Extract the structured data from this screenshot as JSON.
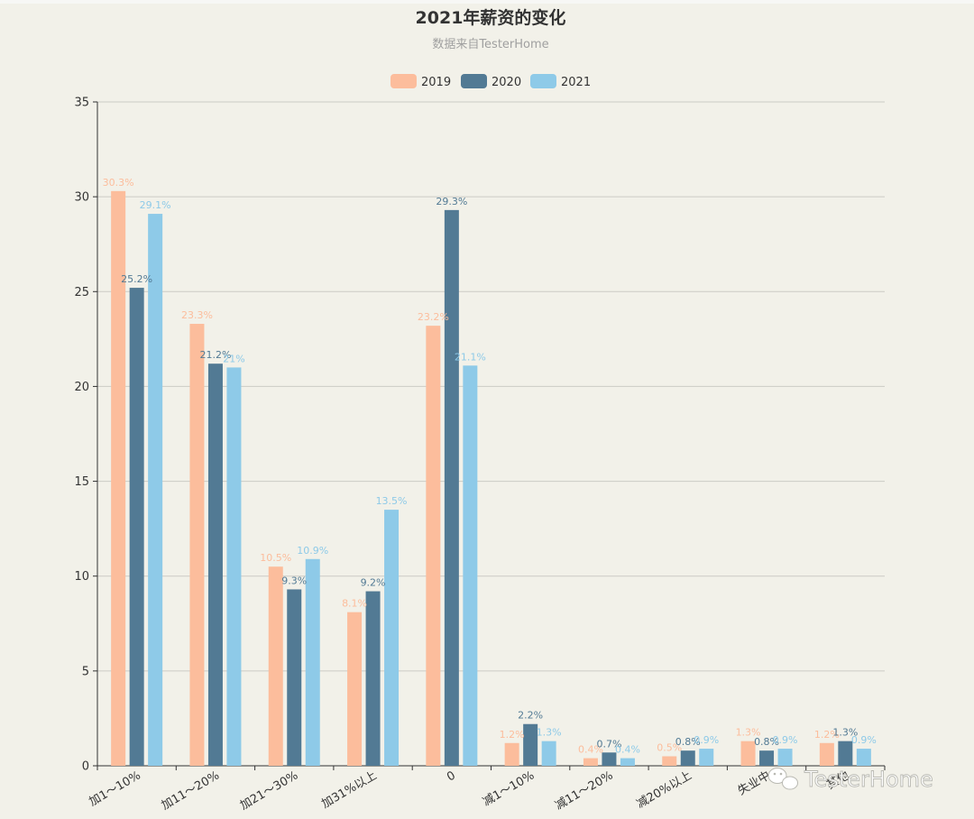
{
  "chart_data": {
    "type": "bar",
    "title": "2021年薪资的变化",
    "subtitle": "数据来自TesterHome",
    "categories": [
      "加1～10%",
      "加11～20%",
      "加21～30%",
      "加31%以上",
      "0",
      "减1～10%",
      "减11～20%",
      "减20%以上",
      "失业中",
      "其他"
    ],
    "series": [
      {
        "name": "2019",
        "color": "#fcbd9c",
        "values": [
          30.3,
          23.3,
          10.5,
          8.1,
          23.2,
          1.2,
          0.4,
          0.5,
          1.3,
          1.2
        ]
      },
      {
        "name": "2020",
        "color": "#527a94",
        "values": [
          25.2,
          21.2,
          9.3,
          9.2,
          29.3,
          2.2,
          0.7,
          0.8,
          0.8,
          1.3
        ]
      },
      {
        "name": "2021",
        "color": "#8ecae8",
        "values": [
          29.1,
          21,
          10.9,
          13.5,
          21.1,
          1.3,
          0.4,
          0.9,
          0.9,
          0.9
        ]
      }
    ],
    "labels": [
      [
        "30.3%",
        "23.3%",
        "10.5%",
        "8.1%",
        "23.2%",
        "1.2%",
        "0.4%",
        "0.5%",
        "1.3%",
        "1.2%"
      ],
      [
        "25.2%",
        "21.2%",
        "9.3%",
        "9.2%",
        "29.3%",
        "2.2%",
        "0.7%",
        "0.8%",
        "0.8%",
        "1.3%"
      ],
      [
        "29.1%",
        "21%",
        "10.9%",
        "13.5%",
        "21.1%",
        "1.3%",
        "0.4%",
        "0.9%",
        "0.9%",
        "0.9%"
      ]
    ],
    "yticks": [
      "0",
      "5",
      "10",
      "15",
      "20",
      "25",
      "30",
      "35"
    ],
    "ylim": [
      0,
      35
    ],
    "legend_position": "top-center",
    "grid": true
  },
  "watermark": {
    "text": "TesterHome",
    "icon": "wechat-icon"
  }
}
